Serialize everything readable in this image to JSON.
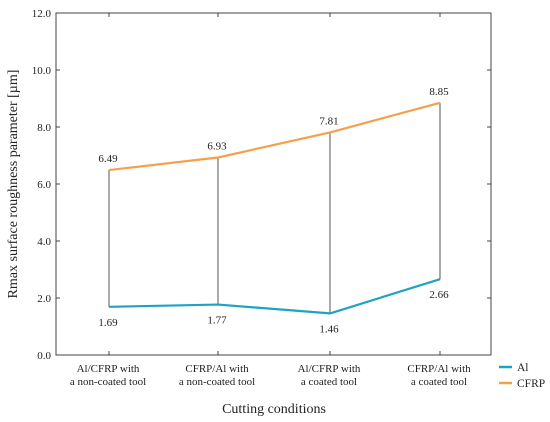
{
  "chart_data": {
    "type": "line",
    "xlabel": "Cutting conditions",
    "ylabel": "Rmax surface roughness parameter [µm]",
    "ylim": [
      0,
      12
    ],
    "yticks": [
      "0.0",
      "2.0",
      "4.0",
      "6.0",
      "8.0",
      "10.0",
      "12.0"
    ],
    "categories": [
      [
        "Al/CFRP with",
        "a non-coated tool"
      ],
      [
        "CFRP/Al with",
        "a non-coated tool"
      ],
      [
        "Al/CFRP with",
        "a coated tool"
      ],
      [
        "CFRP/Al with",
        "a coated tool"
      ]
    ],
    "series": [
      {
        "name": "Al",
        "color": "#1fa3c2",
        "values": [
          1.69,
          1.77,
          1.46,
          2.66
        ],
        "labels": [
          "1.69",
          "1.77",
          "1.46",
          "2.66"
        ]
      },
      {
        "name": "CFRP",
        "color": "#f5a04b",
        "values": [
          6.49,
          6.93,
          7.81,
          8.85
        ],
        "labels": [
          "6.49",
          "6.93",
          "7.81",
          "8.85"
        ]
      }
    ],
    "connector_color": "#555555",
    "grid": false,
    "legend_position": "right"
  }
}
